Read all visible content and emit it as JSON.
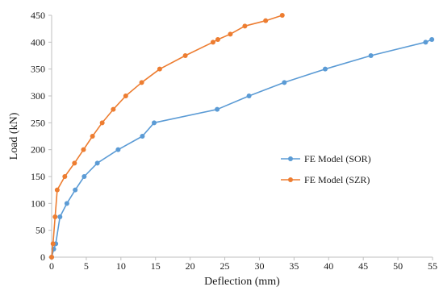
{
  "chart_data": {
    "type": "line",
    "xlabel": "Deflection (mm)",
    "ylabel": "Load (kN)",
    "xlim": [
      0,
      55
    ],
    "ylim": [
      0,
      450
    ],
    "xticks": [
      0,
      5,
      10,
      15,
      20,
      25,
      30,
      35,
      40,
      45,
      50,
      55
    ],
    "yticks": [
      0,
      50,
      100,
      150,
      200,
      250,
      300,
      350,
      400,
      450
    ],
    "grid": false,
    "legend_position": "right",
    "series": [
      {
        "name": "FE Model (SOR)",
        "color": "#5b9bd5",
        "x": [
          0,
          0.3,
          0.6,
          1.2,
          2.2,
          3.4,
          4.7,
          6.6,
          9.6,
          13.1,
          14.8,
          23.9,
          28.5,
          33.6,
          39.5,
          46.1,
          54.0,
          54.9
        ],
        "y": [
          0,
          15,
          25,
          75,
          100,
          125,
          150,
          175,
          200,
          225,
          250,
          275,
          300,
          325,
          350,
          375,
          400,
          405
        ]
      },
      {
        "name": "FE Model (SZR)",
        "color": "#ed7d31",
        "x": [
          0,
          0.2,
          0.5,
          0.8,
          1.9,
          3.3,
          4.6,
          5.9,
          7.3,
          8.9,
          10.7,
          13.0,
          15.6,
          19.3,
          23.3,
          24.0,
          25.8,
          27.9,
          30.9,
          33.3
        ],
        "y": [
          0,
          25,
          75,
          125,
          150,
          175,
          200,
          225,
          250,
          275,
          300,
          325,
          350,
          375,
          400,
          405,
          415,
          430,
          440,
          450
        ]
      }
    ]
  }
}
